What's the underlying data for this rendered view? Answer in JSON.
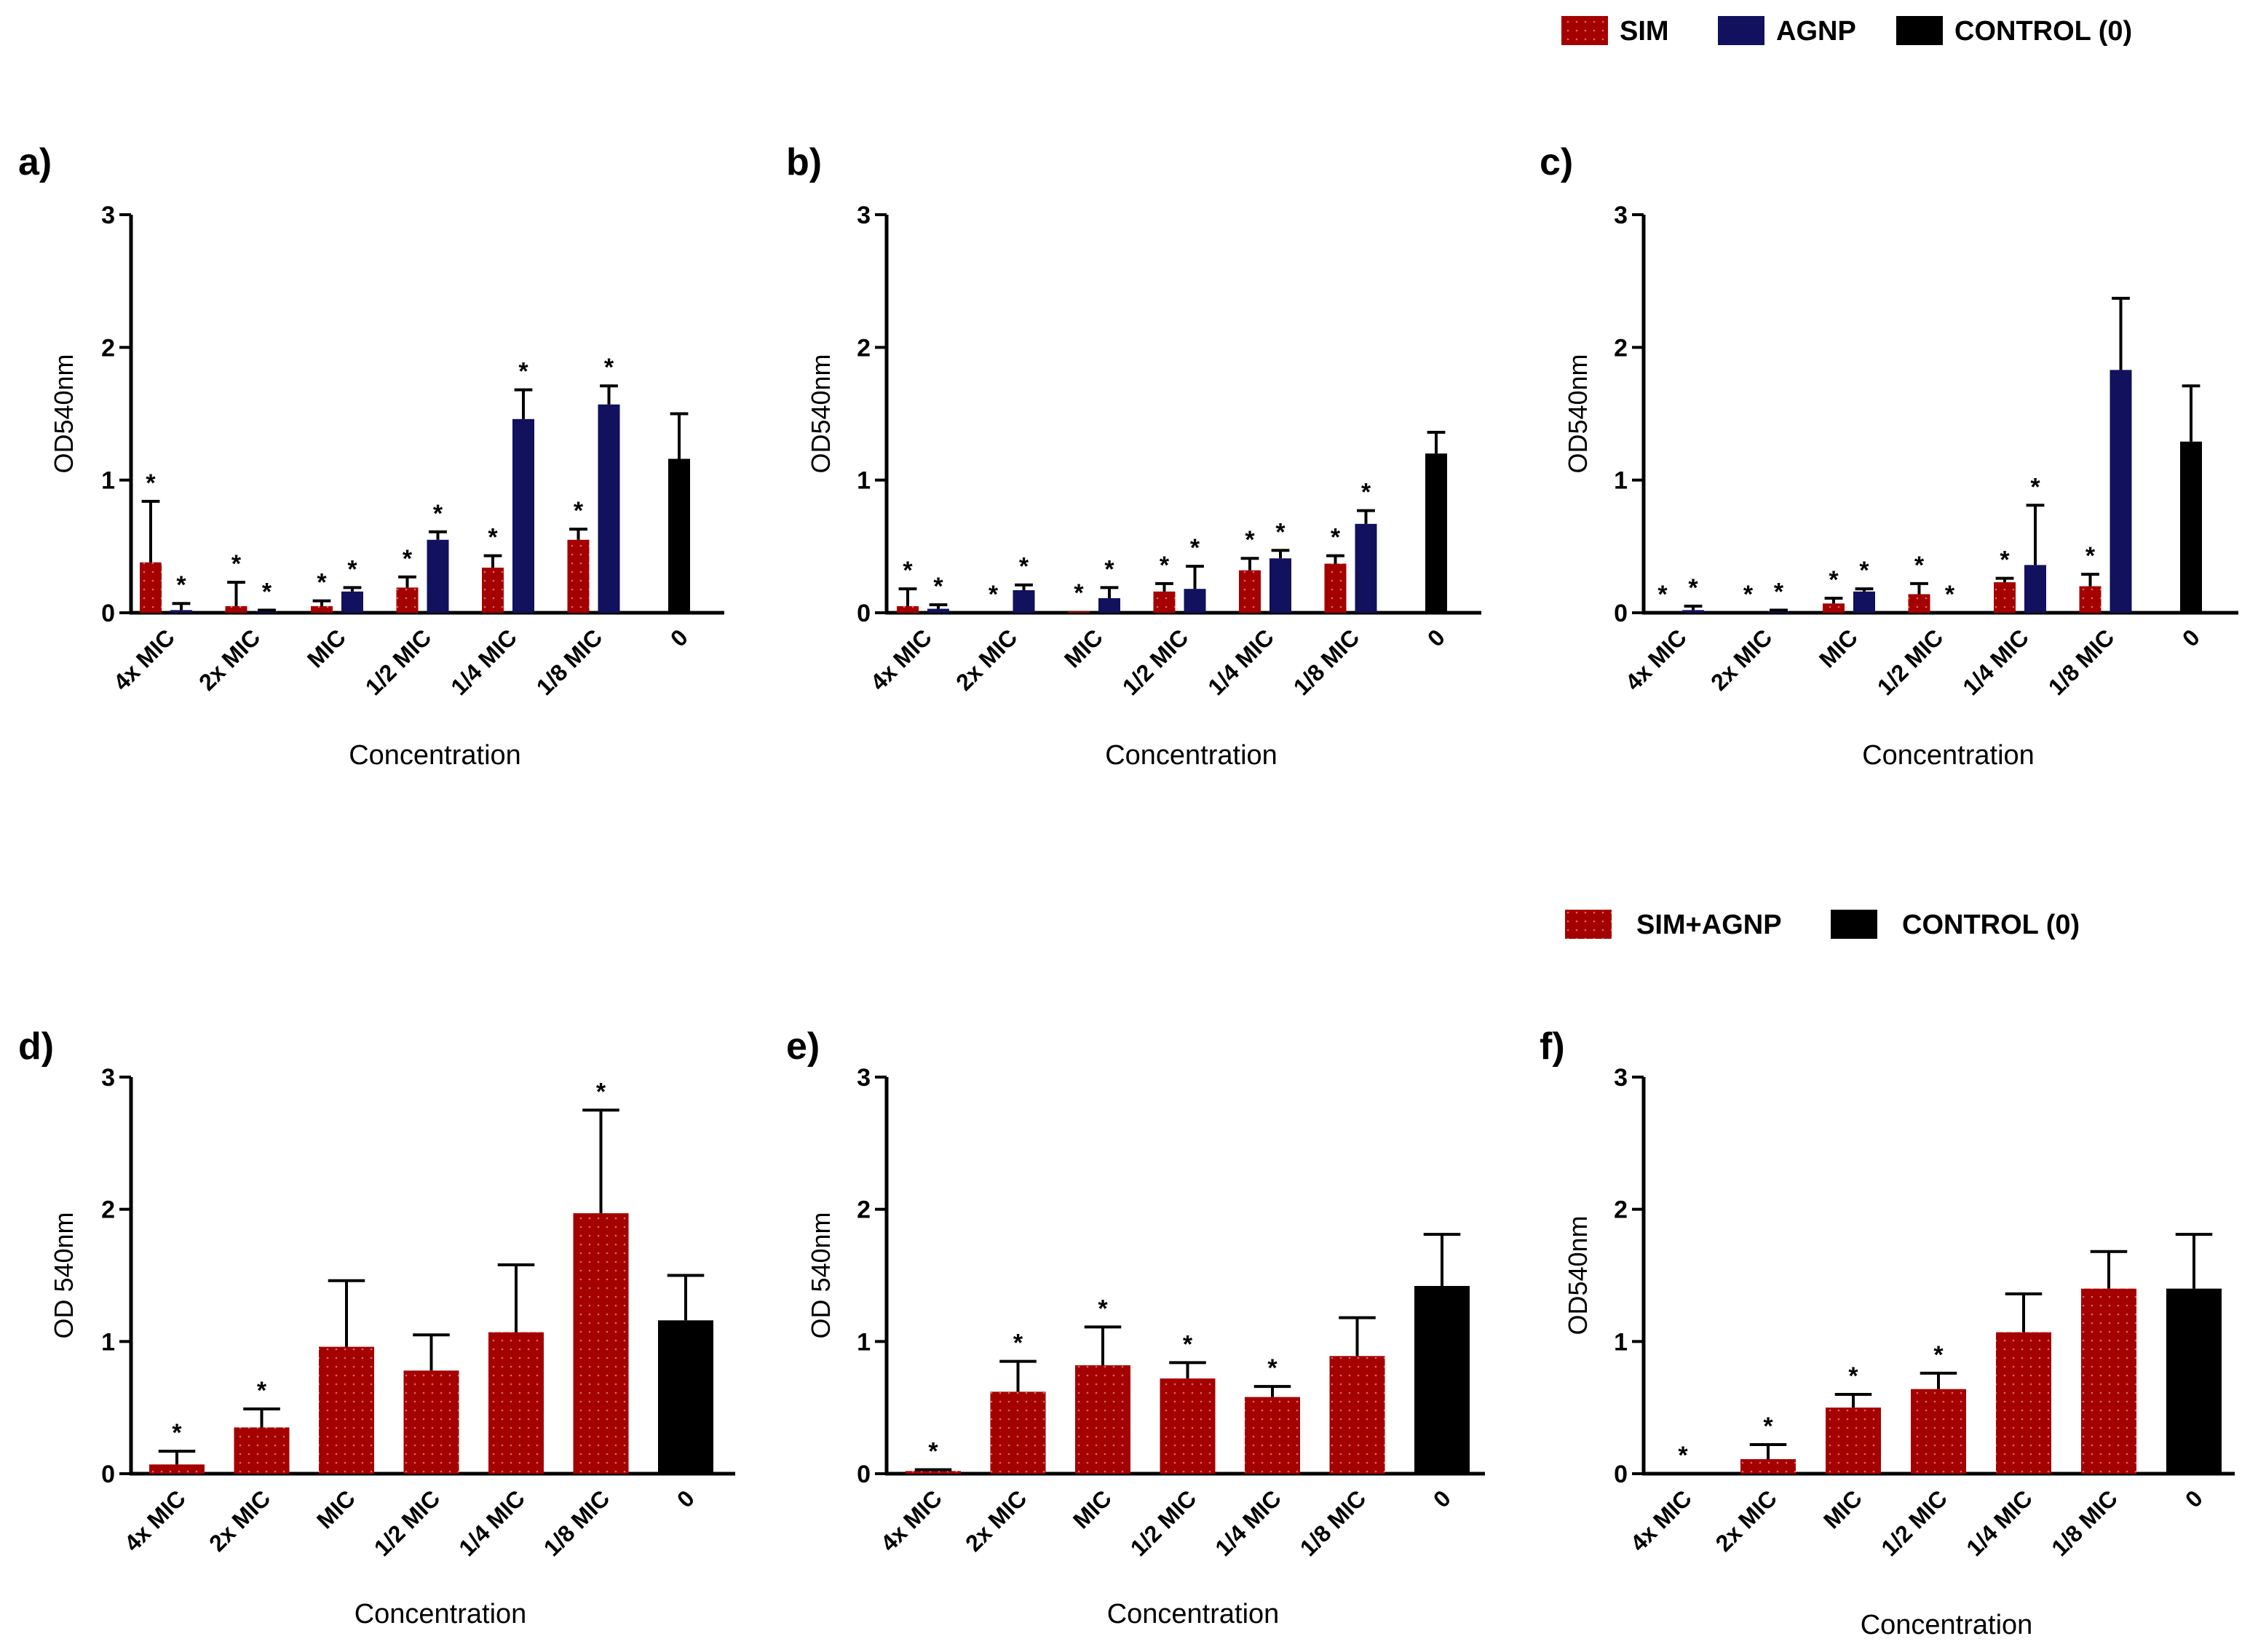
{
  "legends": [
    {
      "items": [
        {
          "label": "SIM",
          "color": "#a50000",
          "dotted": true
        },
        {
          "label": "AGNP",
          "color": "#11115e",
          "dotted": false
        },
        {
          "label": "CONTROL (0)",
          "color": "#000000",
          "dotted": false
        }
      ]
    },
    {
      "items": [
        {
          "label": "SIM+AGNP",
          "color": "#a50000",
          "dotted": true
        },
        {
          "label": "CONTROL (0)",
          "color": "#000000",
          "dotted": false
        }
      ]
    }
  ],
  "chart_data": [
    {
      "panel": "a)",
      "type": "bar",
      "categories": [
        "4x MIC",
        "2x MIC",
        "MIC",
        "1/2 MIC",
        "1/4 MIC",
        "1/8 MIC",
        "0"
      ],
      "xlabel": "Concentration",
      "ylabel": "OD540nm",
      "ylim": [
        0,
        3
      ],
      "yticks": [
        "0",
        "1",
        "2",
        "3"
      ],
      "series": [
        {
          "name": "SIM",
          "color": "#a50000",
          "values": [
            0.38,
            0.05,
            0.05,
            0.19,
            0.34,
            0.55,
            null
          ],
          "errors": [
            0.46,
            0.18,
            0.04,
            0.08,
            0.09,
            0.08,
            null
          ],
          "sig": [
            true,
            true,
            true,
            true,
            true,
            true,
            false
          ]
        },
        {
          "name": "AGNP",
          "color": "#11115e",
          "values": [
            0.02,
            0.01,
            0.16,
            0.55,
            1.46,
            1.57,
            null
          ],
          "errors": [
            0.05,
            0.01,
            0.03,
            0.06,
            0.22,
            0.14,
            null
          ],
          "sig": [
            true,
            true,
            true,
            true,
            true,
            true,
            false
          ]
        },
        {
          "name": "CONTROL (0)",
          "color": "#000000",
          "values": [
            null,
            null,
            null,
            null,
            null,
            null,
            1.16
          ],
          "errors": [
            null,
            null,
            null,
            null,
            null,
            null,
            0.34
          ],
          "sig": [
            false,
            false,
            false,
            false,
            false,
            false,
            false
          ]
        }
      ]
    },
    {
      "panel": "b)",
      "type": "bar",
      "categories": [
        "4x MIC",
        "2x MIC",
        "MIC",
        "1/2 MIC",
        "1/4 MIC",
        "1/8 MIC",
        "0"
      ],
      "xlabel": "Concentration",
      "ylabel": "OD540nm",
      "ylim": [
        0,
        3
      ],
      "yticks": [
        "0",
        "1",
        "2",
        "3"
      ],
      "series": [
        {
          "name": "SIM",
          "color": "#a50000",
          "values": [
            0.05,
            0.0,
            0.01,
            0.16,
            0.32,
            0.37,
            null
          ],
          "errors": [
            0.13,
            0.0,
            0.0,
            0.06,
            0.09,
            0.06,
            null
          ],
          "sig": [
            true,
            true,
            true,
            true,
            true,
            true,
            false
          ]
        },
        {
          "name": "AGNP",
          "color": "#11115e",
          "values": [
            0.03,
            0.17,
            0.11,
            0.18,
            0.41,
            0.67,
            null
          ],
          "errors": [
            0.03,
            0.04,
            0.08,
            0.17,
            0.06,
            0.1,
            null
          ],
          "sig": [
            true,
            true,
            true,
            true,
            true,
            true,
            false
          ]
        },
        {
          "name": "CONTROL (0)",
          "color": "#000000",
          "values": [
            null,
            null,
            null,
            null,
            null,
            null,
            1.2
          ],
          "errors": [
            null,
            null,
            null,
            null,
            null,
            null,
            0.16
          ],
          "sig": [
            false,
            false,
            false,
            false,
            false,
            false,
            false
          ]
        }
      ]
    },
    {
      "panel": "c)",
      "type": "bar",
      "categories": [
        "4x MIC",
        "2x MIC",
        "MIC",
        "1/2 MIC",
        "1/4 MIC",
        "1/8 MIC",
        "0"
      ],
      "xlabel": "Concentration",
      "ylabel": "OD540nm",
      "ylim": [
        0,
        3
      ],
      "yticks": [
        "0",
        "1",
        "2",
        "3"
      ],
      "series": [
        {
          "name": "SIM",
          "color": "#a50000",
          "values": [
            0.0,
            0.0,
            0.07,
            0.14,
            0.23,
            0.2,
            null
          ],
          "errors": [
            0.0,
            0.0,
            0.04,
            0.08,
            0.03,
            0.09,
            null
          ],
          "sig": [
            true,
            true,
            true,
            true,
            true,
            true,
            false
          ]
        },
        {
          "name": "AGNP",
          "color": "#11115e",
          "values": [
            0.02,
            0.01,
            0.16,
            0.0,
            0.36,
            1.83,
            null
          ],
          "errors": [
            0.03,
            0.01,
            0.02,
            0.0,
            0.45,
            0.54,
            null
          ],
          "sig": [
            true,
            true,
            true,
            true,
            true,
            false,
            false
          ]
        },
        {
          "name": "CONTROL (0)",
          "color": "#000000",
          "values": [
            null,
            null,
            null,
            null,
            null,
            null,
            1.29
          ],
          "errors": [
            null,
            null,
            null,
            null,
            null,
            null,
            0.42
          ],
          "sig": [
            false,
            false,
            false,
            false,
            false,
            false,
            false
          ]
        }
      ]
    },
    {
      "panel": "d)",
      "type": "bar",
      "categories": [
        "4x MIC",
        "2x MIC",
        "MIC",
        "1/2 MIC",
        "1/4 MIC",
        "1/8 MIC",
        "0"
      ],
      "xlabel": "Concentration",
      "ylabel": "OD 540nm",
      "ylim": [
        0,
        3
      ],
      "yticks": [
        "0",
        "1",
        "2",
        "3"
      ],
      "series": [
        {
          "name": "SIM+AGNP",
          "color": "#a50000",
          "values": [
            0.07,
            0.35,
            0.96,
            0.78,
            1.07,
            1.97,
            null
          ],
          "errors": [
            0.1,
            0.14,
            0.5,
            0.27,
            0.51,
            0.78,
            null
          ],
          "sig": [
            true,
            true,
            false,
            false,
            false,
            true,
            false
          ]
        },
        {
          "name": "CONTROL (0)",
          "color": "#000000",
          "values": [
            null,
            null,
            null,
            null,
            null,
            null,
            1.16
          ],
          "errors": [
            null,
            null,
            null,
            null,
            null,
            null,
            0.34
          ],
          "sig": [
            false,
            false,
            false,
            false,
            false,
            false,
            false
          ]
        }
      ]
    },
    {
      "panel": "e)",
      "type": "bar",
      "categories": [
        "4x MIC",
        "2x MIC",
        "MIC",
        "1/2 MIC",
        "1/4 MIC",
        "1/8 MIC",
        "0"
      ],
      "xlabel": "Concentration",
      "ylabel": "OD 540nm",
      "ylim": [
        0,
        3
      ],
      "yticks": [
        "0",
        "1",
        "2",
        "3"
      ],
      "series": [
        {
          "name": "SIM+AGNP",
          "color": "#a50000",
          "values": [
            0.02,
            0.62,
            0.82,
            0.72,
            0.58,
            0.89,
            null
          ],
          "errors": [
            0.01,
            0.23,
            0.29,
            0.12,
            0.08,
            0.29,
            null
          ],
          "sig": [
            true,
            true,
            true,
            true,
            true,
            false,
            false
          ]
        },
        {
          "name": "CONTROL (0)",
          "color": "#000000",
          "values": [
            null,
            null,
            null,
            null,
            null,
            null,
            1.42
          ],
          "errors": [
            null,
            null,
            null,
            null,
            null,
            null,
            0.39
          ],
          "sig": [
            false,
            false,
            false,
            false,
            false,
            false,
            false
          ]
        }
      ]
    },
    {
      "panel": "f)",
      "type": "bar",
      "categories": [
        "4x MIC",
        "2x MIC",
        "MIC",
        "1/2 MIC",
        "1/4 MIC",
        "1/8 MIC",
        "0"
      ],
      "xlabel": "Concentration",
      "ylabel": "OD540nm",
      "ylim": [
        0,
        3
      ],
      "yticks": [
        "0",
        "1",
        "2",
        "3"
      ],
      "series": [
        {
          "name": "SIM+AGNP",
          "color": "#a50000",
          "values": [
            0.0,
            0.11,
            0.5,
            0.64,
            1.07,
            1.4,
            null
          ],
          "errors": [
            0.0,
            0.11,
            0.1,
            0.12,
            0.29,
            0.28,
            null
          ],
          "sig": [
            true,
            true,
            true,
            true,
            false,
            false,
            false
          ]
        },
        {
          "name": "CONTROL (0)",
          "color": "#000000",
          "values": [
            null,
            null,
            null,
            null,
            null,
            null,
            1.4
          ],
          "errors": [
            null,
            null,
            null,
            null,
            null,
            null,
            0.41
          ],
          "sig": [
            false,
            false,
            false,
            false,
            false,
            false,
            false
          ]
        }
      ]
    }
  ]
}
